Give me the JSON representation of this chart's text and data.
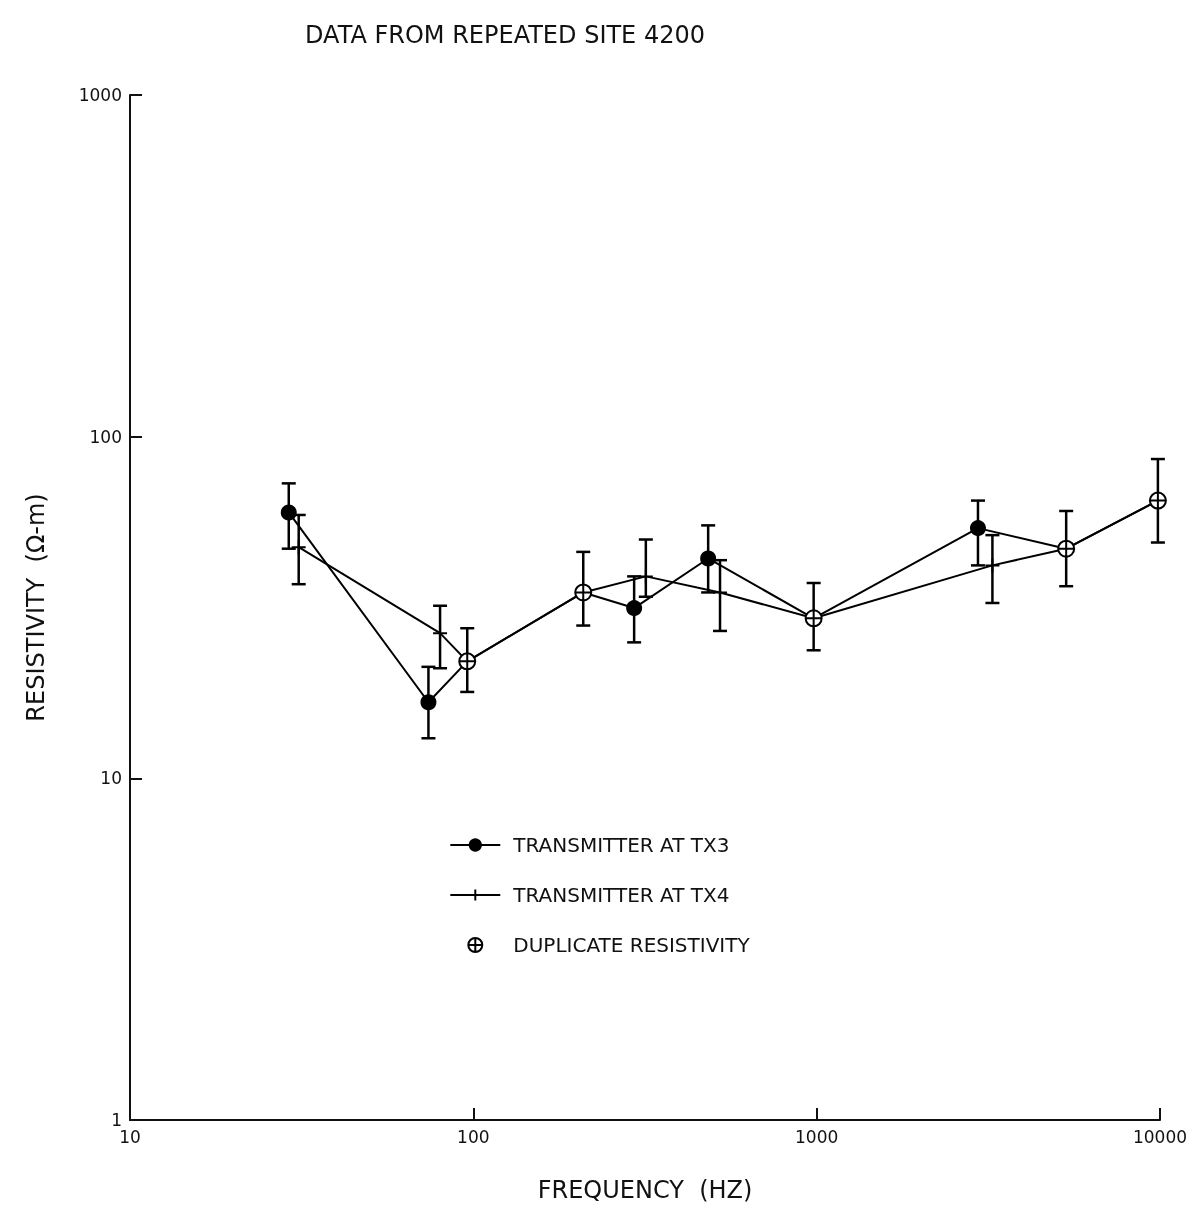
{
  "chart_data": {
    "type": "line",
    "title": "DATA FROM REPEATED SITE 4200",
    "xlabel": "FREQUENCY  (HZ)",
    "ylabel": "RESISTIVITY  (Ω-m)",
    "log": "xy",
    "xlim": [
      10,
      10000
    ],
    "xticks": [
      10,
      100,
      1000,
      10000
    ],
    "ylim": [
      1,
      1000
    ],
    "yticks": [
      1,
      10,
      100,
      1000
    ],
    "grid": false,
    "legend": "bottom",
    "series": [
      {
        "name": "TRANSMITTER AT TX3",
        "marker": "circle",
        "color": "#000000",
        "x": [
          29,
          74,
          96,
          209,
          294,
          483,
          980,
          2950,
          5330,
          9860
        ],
        "values": [
          60,
          16.7,
          22,
          35,
          31.5,
          44,
          29.4,
          54,
          47,
          65
        ],
        "errors": [
          [
            47,
            73
          ],
          [
            13.1,
            21.2
          ],
          null,
          null,
          [
            25,
            39
          ],
          [
            35,
            55
          ],
          null,
          [
            42,
            65
          ],
          null,
          null
        ]
      },
      {
        "name": "TRANSMITTER AT TX4",
        "marker": "cross",
        "color": "#000000",
        "x": [
          31,
          80,
          96,
          209,
          318,
          523,
          980,
          3250,
          5330,
          9860
        ],
        "values": [
          47.5,
          26.6,
          22,
          35,
          39,
          35,
          29.4,
          42,
          47,
          65
        ],
        "errors": [
          [
            37,
            59
          ],
          [
            21,
            32
          ],
          null,
          null,
          [
            34,
            50
          ],
          [
            27,
            43.5
          ],
          null,
          [
            32.6,
            51.5
          ],
          null,
          null
        ]
      },
      {
        "name": "DUPLICATE RESISTIVITY",
        "type": "scatter",
        "marker": "cross",
        "color": "#000000",
        "x": [
          96,
          209,
          980,
          5330,
          9860
        ],
        "values": [
          22,
          35,
          29.4,
          47,
          65
        ],
        "errors": [
          [
            17.9,
            27.5
          ],
          [
            28,
            46
          ],
          [
            23.7,
            37.3
          ],
          [
            36.5,
            60.6
          ],
          [
            49,
            86
          ]
        ]
      }
    ]
  }
}
